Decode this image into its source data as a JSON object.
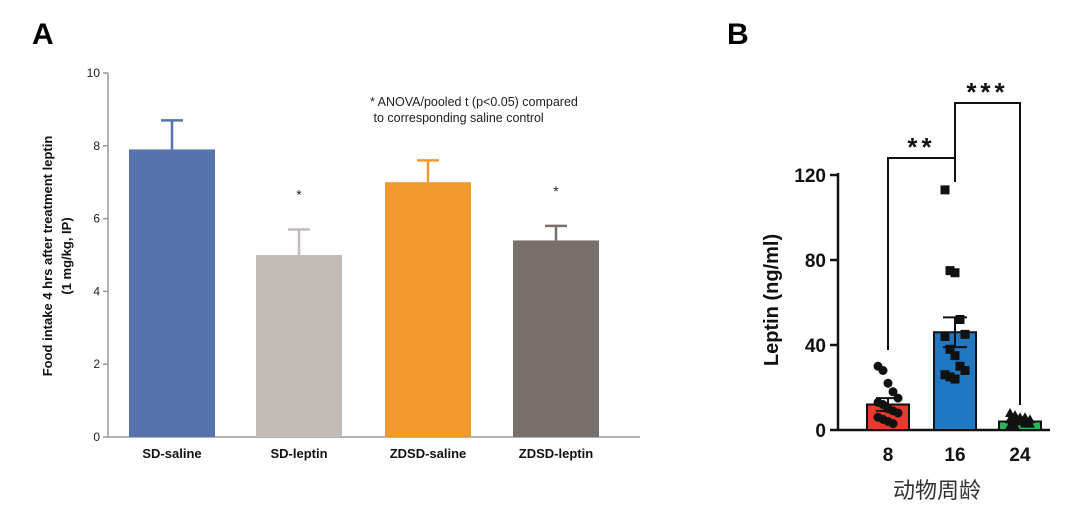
{
  "chart_data": [
    {
      "panel": "A",
      "type": "bar",
      "title": "",
      "ylabel": "Food intake 4 hrs after treatment leptin",
      "ylabel2": "(1 mg/kg, IP)",
      "xlabel": "",
      "ylim": [
        0,
        10
      ],
      "yticks": [
        0,
        2,
        4,
        6,
        8,
        10
      ],
      "categories": [
        "SD-saline",
        "SD-leptin",
        "ZDSD-saline",
        "ZDSD-leptin"
      ],
      "values": [
        7.9,
        5.0,
        7.0,
        5.4
      ],
      "errors": [
        0.8,
        0.7,
        0.6,
        0.4
      ],
      "colors": [
        "#5673ad",
        "#c3bbb8",
        "#f29a2e",
        "#7a706b"
      ],
      "significance": [
        "",
        "*",
        "",
        "*"
      ],
      "annotation_lines": [
        "* ANOVA/pooled t (p<0.05) compared",
        " to corresponding saline control"
      ],
      "grid": false
    },
    {
      "panel": "B",
      "type": "bar",
      "title": "",
      "ylabel": "Leptin (ng/ml)",
      "xlabel": "动物周龄",
      "ylim": [
        0,
        120
      ],
      "yticks": [
        0,
        40,
        80,
        120
      ],
      "categories": [
        "8",
        "16",
        "24"
      ],
      "values": [
        12,
        46,
        4
      ],
      "errors": [
        3,
        7,
        1
      ],
      "colors": [
        "#e8392f",
        "#1f78c1",
        "#2fb35a"
      ],
      "points": [
        [
          30,
          28,
          22,
          18,
          15,
          13,
          12,
          10,
          9,
          8,
          6,
          5,
          4,
          3
        ],
        [
          113,
          75,
          74,
          52,
          45,
          44,
          38,
          35,
          30,
          28,
          26,
          25,
          24
        ],
        [
          8,
          7,
          6,
          6,
          5,
          5,
          4,
          4,
          3,
          3,
          2,
          2
        ]
      ],
      "point_markers": [
        "circle",
        "square",
        "triangle"
      ],
      "comparisons": [
        {
          "from": "8",
          "to": "16",
          "label": "**"
        },
        {
          "from": "16",
          "to": "24",
          "label": "***"
        }
      ],
      "grid": false
    }
  ]
}
